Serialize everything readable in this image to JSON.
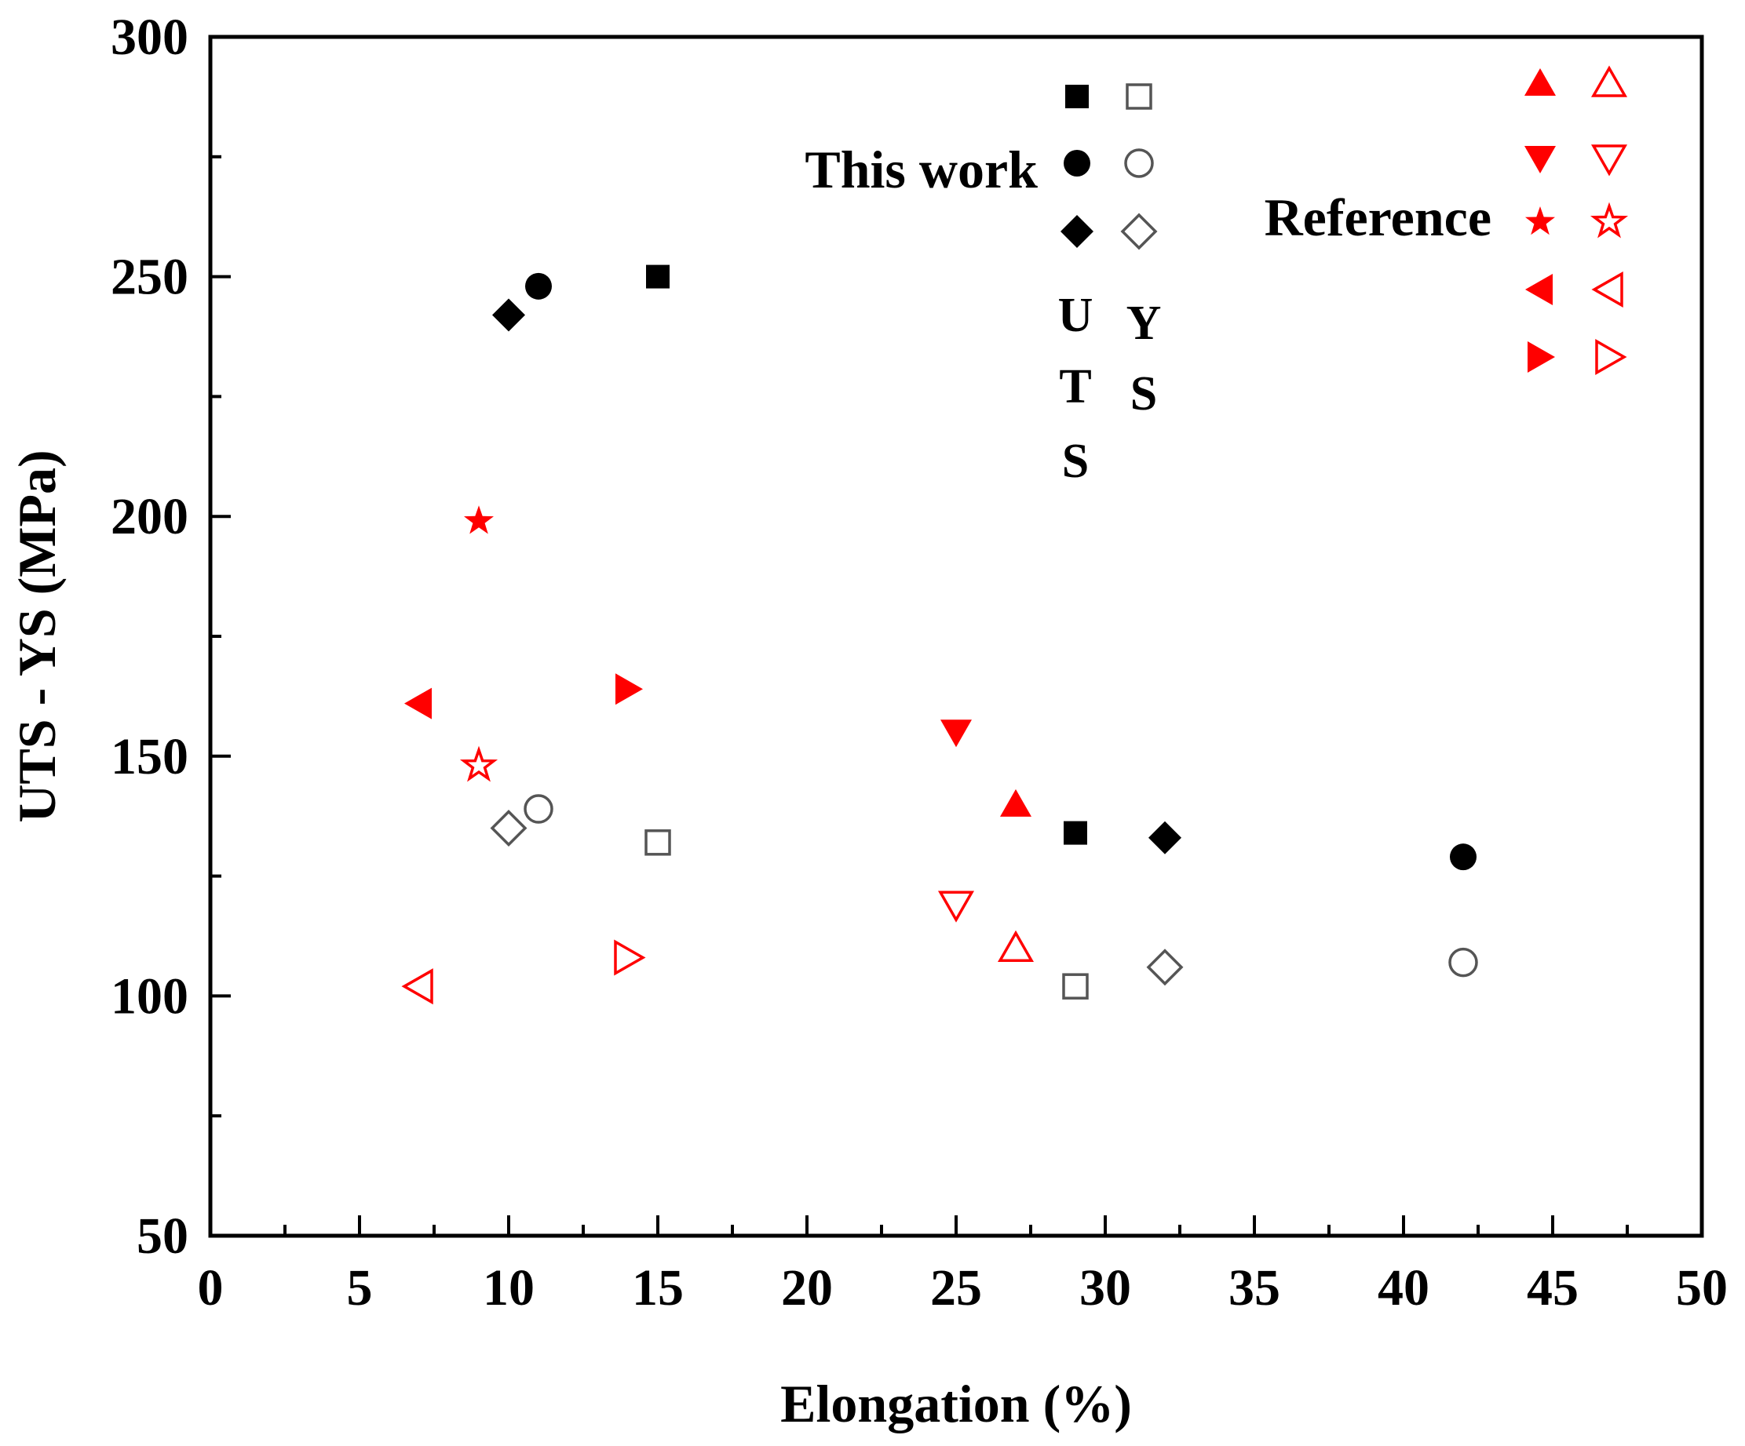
{
  "chart_data": {
    "type": "scatter",
    "xlabel": "Elongation (%)",
    "ylabel": "UTS - YS (MPa)",
    "xlim": [
      0,
      50
    ],
    "ylim": [
      50,
      300
    ],
    "x_ticks": [
      0,
      5,
      10,
      15,
      20,
      25,
      30,
      35,
      40,
      45,
      50
    ],
    "y_ticks": [
      50,
      100,
      150,
      200,
      250,
      300
    ],
    "colors": {
      "this_work": "#000000",
      "reference": "#ff0000",
      "open_this_work": "#555555"
    },
    "series": [
      {
        "name": "This work - square",
        "group": "this_work",
        "marker": "square",
        "uts": {
          "x": [
            15,
            29
          ],
          "y": [
            250,
            134
          ]
        },
        "ys": {
          "x": [
            15,
            29
          ],
          "y": [
            132,
            102
          ]
        }
      },
      {
        "name": "This work - circle",
        "group": "this_work",
        "marker": "circle",
        "uts": {
          "x": [
            11,
            42
          ],
          "y": [
            248,
            129
          ]
        },
        "ys": {
          "x": [
            11,
            42
          ],
          "y": [
            139,
            107
          ]
        }
      },
      {
        "name": "This work - diamond",
        "group": "this_work",
        "marker": "diamond",
        "uts": {
          "x": [
            10,
            32
          ],
          "y": [
            242,
            133
          ]
        },
        "ys": {
          "x": [
            10,
            32
          ],
          "y": [
            135,
            106
          ]
        }
      },
      {
        "name": "Reference - triangle up",
        "group": "reference",
        "marker": "triangle-up",
        "uts": {
          "x": [
            27
          ],
          "y": [
            140
          ]
        },
        "ys": {
          "x": [
            27
          ],
          "y": [
            110
          ]
        }
      },
      {
        "name": "Reference - triangle down",
        "group": "reference",
        "marker": "triangle-down",
        "uts": {
          "x": [
            25
          ],
          "y": [
            155
          ]
        },
        "ys": {
          "x": [
            25
          ],
          "y": [
            119
          ]
        }
      },
      {
        "name": "Reference - star",
        "group": "reference",
        "marker": "star",
        "uts": {
          "x": [
            9
          ],
          "y": [
            199
          ]
        },
        "ys": {
          "x": [
            9
          ],
          "y": [
            148
          ]
        }
      },
      {
        "name": "Reference - triangle left",
        "group": "reference",
        "marker": "triangle-left",
        "uts": {
          "x": [
            7
          ],
          "y": [
            161
          ]
        },
        "ys": {
          "x": [
            7
          ],
          "y": [
            102
          ]
        }
      },
      {
        "name": "Reference - triangle right",
        "group": "reference",
        "marker": "triangle-right",
        "uts": {
          "x": [
            14
          ],
          "y": [
            164
          ]
        },
        "ys": {
          "x": [
            14
          ],
          "y": [
            108
          ]
        }
      }
    ],
    "legend": {
      "this_work_label": "This work",
      "reference_label": "Reference",
      "uts_letters": [
        "U",
        "T",
        "S"
      ],
      "ys_letters": [
        "Y",
        "S"
      ]
    }
  }
}
